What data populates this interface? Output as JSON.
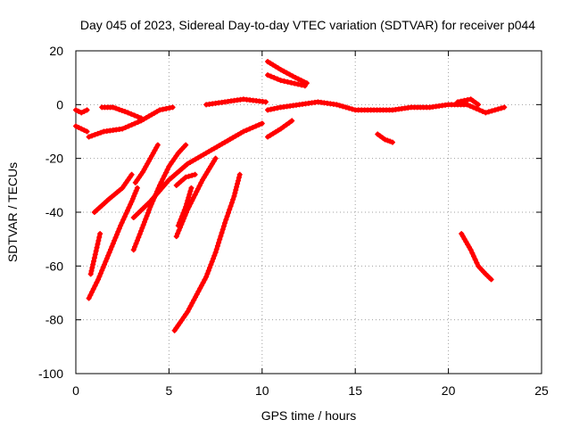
{
  "chart_data": {
    "type": "scatter",
    "title": "Day 045 of 2023, Sidereal Day-to-day VTEC variation (SDTVAR) for receiver p044",
    "xlabel": "GPS time / hours",
    "ylabel": "SDTVAR / TECUs",
    "xlim": [
      0,
      25
    ],
    "ylim": [
      -100,
      20
    ],
    "xticks": [
      "0",
      "5",
      "10",
      "15",
      "20",
      "25"
    ],
    "yticks": [
      "20",
      "0",
      "-20",
      "-40",
      "-60",
      "-80",
      "-100"
    ],
    "grid": true,
    "color": "#ff0000",
    "series": [
      {
        "name": "arc1",
        "points": [
          [
            0,
            -2
          ],
          [
            0.3,
            -3
          ],
          [
            0.6,
            -2
          ]
        ]
      },
      {
        "name": "arc2",
        "points": [
          [
            0,
            -8
          ],
          [
            0.3,
            -9
          ],
          [
            0.6,
            -10
          ]
        ]
      },
      {
        "name": "arc3",
        "points": [
          [
            0.7,
            -12
          ],
          [
            1.5,
            -10
          ],
          [
            2.5,
            -9
          ],
          [
            3.5,
            -6
          ],
          [
            4.5,
            -2
          ],
          [
            5.2,
            -1
          ]
        ]
      },
      {
        "name": "arc4",
        "points": [
          [
            1.4,
            -1
          ],
          [
            2,
            -1
          ],
          [
            2.8,
            -3
          ],
          [
            3.5,
            -5
          ]
        ]
      },
      {
        "name": "arc5",
        "points": [
          [
            1,
            -40
          ],
          [
            1.8,
            -35
          ],
          [
            2.5,
            -31
          ],
          [
            3,
            -26
          ]
        ]
      },
      {
        "name": "arc6",
        "points": [
          [
            0.7,
            -72
          ],
          [
            1.2,
            -65
          ],
          [
            1.8,
            -55
          ],
          [
            2.4,
            -45
          ],
          [
            3,
            -36
          ],
          [
            3.3,
            -31
          ]
        ]
      },
      {
        "name": "arc7",
        "points": [
          [
            0.8,
            -63
          ],
          [
            1,
            -57
          ],
          [
            1.3,
            -48
          ]
        ]
      },
      {
        "name": "arc8",
        "points": [
          [
            3.1,
            -42
          ],
          [
            4,
            -36
          ],
          [
            5,
            -28
          ],
          [
            6,
            -22
          ],
          [
            7,
            -18
          ],
          [
            8,
            -14
          ],
          [
            9,
            -10
          ],
          [
            10,
            -7
          ]
        ]
      },
      {
        "name": "arc9",
        "points": [
          [
            3.1,
            -54
          ],
          [
            3.5,
            -47
          ],
          [
            4,
            -38
          ],
          [
            4.5,
            -30
          ],
          [
            5,
            -23
          ],
          [
            5.5,
            -18
          ],
          [
            5.9,
            -15
          ]
        ]
      },
      {
        "name": "arc10",
        "points": [
          [
            3.2,
            -29
          ],
          [
            3.6,
            -25
          ],
          [
            4,
            -20
          ],
          [
            4.4,
            -15
          ]
        ]
      },
      {
        "name": "arc11",
        "points": [
          [
            5.4,
            -49
          ],
          [
            6,
            -39
          ],
          [
            6.8,
            -28
          ],
          [
            7.5,
            -20
          ]
        ]
      },
      {
        "name": "arc12",
        "points": [
          [
            5.5,
            -45
          ],
          [
            5.9,
            -38
          ],
          [
            6.2,
            -31
          ]
        ]
      },
      {
        "name": "arc13",
        "points": [
          [
            5.4,
            -30
          ],
          [
            5.9,
            -27
          ],
          [
            6.4,
            -26
          ]
        ]
      },
      {
        "name": "arc14",
        "points": [
          [
            5.3,
            -84
          ],
          [
            6,
            -77
          ],
          [
            7,
            -64
          ],
          [
            7.5,
            -55
          ],
          [
            8,
            -44
          ],
          [
            8.5,
            -34
          ],
          [
            8.8,
            -26
          ]
        ]
      },
      {
        "name": "arc15",
        "points": [
          [
            7,
            0
          ],
          [
            8,
            1
          ],
          [
            9,
            2
          ],
          [
            10.2,
            1
          ]
        ]
      },
      {
        "name": "arc16",
        "points": [
          [
            10.3,
            -2
          ],
          [
            11,
            -1
          ],
          [
            12,
            0
          ],
          [
            13,
            1
          ],
          [
            14,
            0
          ],
          [
            15,
            -2
          ],
          [
            16,
            -2
          ],
          [
            17,
            -2
          ],
          [
            18,
            -1
          ],
          [
            19,
            -1
          ],
          [
            20,
            0
          ],
          [
            21,
            0
          ],
          [
            22,
            -3
          ],
          [
            23,
            -1
          ]
        ]
      },
      {
        "name": "arc17",
        "points": [
          [
            10.3,
            16
          ],
          [
            11,
            13
          ],
          [
            11.8,
            10
          ],
          [
            12.4,
            8
          ]
        ]
      },
      {
        "name": "arc18",
        "points": [
          [
            10.3,
            11
          ],
          [
            11,
            9
          ],
          [
            12.3,
            7
          ]
        ]
      },
      {
        "name": "arc19",
        "points": [
          [
            10.3,
            -12
          ],
          [
            11,
            -9
          ],
          [
            11.6,
            -6
          ]
        ]
      },
      {
        "name": "arc20",
        "points": [
          [
            16.2,
            -11
          ],
          [
            16.6,
            -13
          ],
          [
            17,
            -14
          ]
        ]
      },
      {
        "name": "arc21",
        "points": [
          [
            20.7,
            -48
          ],
          [
            21.2,
            -54
          ],
          [
            21.6,
            -60
          ],
          [
            22,
            -63
          ],
          [
            22.3,
            -65
          ]
        ]
      },
      {
        "name": "arc22",
        "points": [
          [
            20.5,
            1
          ],
          [
            21.2,
            2
          ],
          [
            21.6,
            0
          ]
        ]
      }
    ]
  }
}
